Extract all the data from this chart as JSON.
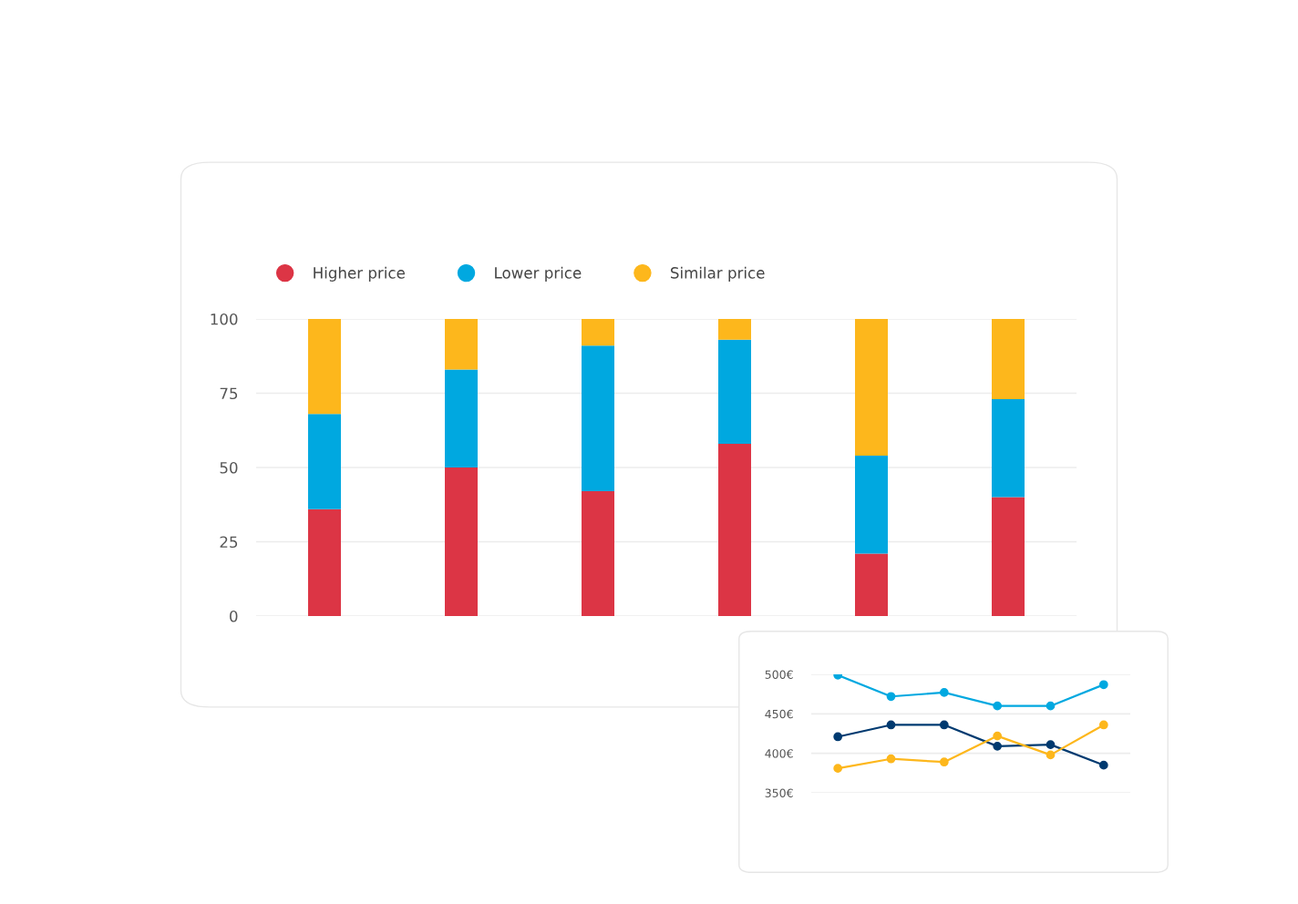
{
  "chart_data": [
    {
      "type": "bar",
      "stacked": true,
      "categories": [
        null,
        null,
        null,
        null,
        null,
        null
      ],
      "series": [
        {
          "name": "Higher price",
          "color": "#dc3545",
          "values": [
            36,
            50,
            42,
            58,
            21,
            40
          ]
        },
        {
          "name": "Lower price",
          "color": "#00a8e0",
          "values": [
            32,
            33,
            49,
            35,
            33,
            33
          ]
        },
        {
          "name": "Similar price",
          "color": "#fdb71c",
          "values": [
            32,
            17,
            9,
            7,
            46,
            27
          ]
        }
      ],
      "ylim": [
        0,
        100
      ],
      "yticks": [
        0,
        25,
        50,
        75,
        100
      ],
      "grid": "y",
      "legend": "top left"
    },
    {
      "type": "line",
      "categories": [
        null,
        null,
        null,
        null,
        null,
        null
      ],
      "marker": "circle",
      "series": [
        {
          "color": "#00a8e0",
          "values": [
            499,
            472,
            477,
            460,
            460,
            487
          ]
        },
        {
          "color": "#003a70",
          "values": [
            421,
            436,
            436,
            409,
            411,
            385
          ]
        },
        {
          "color": "#fdb71c",
          "values": [
            381,
            393,
            389,
            422,
            398,
            436
          ]
        }
      ],
      "ylim": [
        350,
        500
      ],
      "yticks": [
        {
          "value": 350,
          "label": "350€"
        },
        {
          "value": 400,
          "label": "400€"
        },
        {
          "value": 450,
          "label": "450€"
        },
        {
          "value": 500,
          "label": "500€"
        }
      ],
      "grid": "y"
    }
  ]
}
